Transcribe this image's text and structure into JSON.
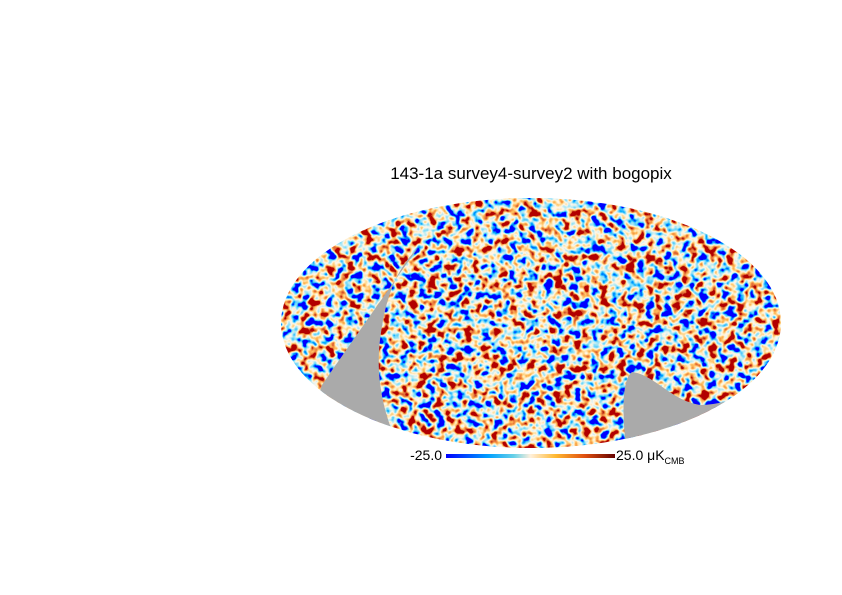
{
  "title": "143-1a survey4-survey2 with bogopix",
  "colorbar": {
    "min_label": "-25.0",
    "max_label": "25.0 μK",
    "unit_subscript": "CMB"
  }
}
